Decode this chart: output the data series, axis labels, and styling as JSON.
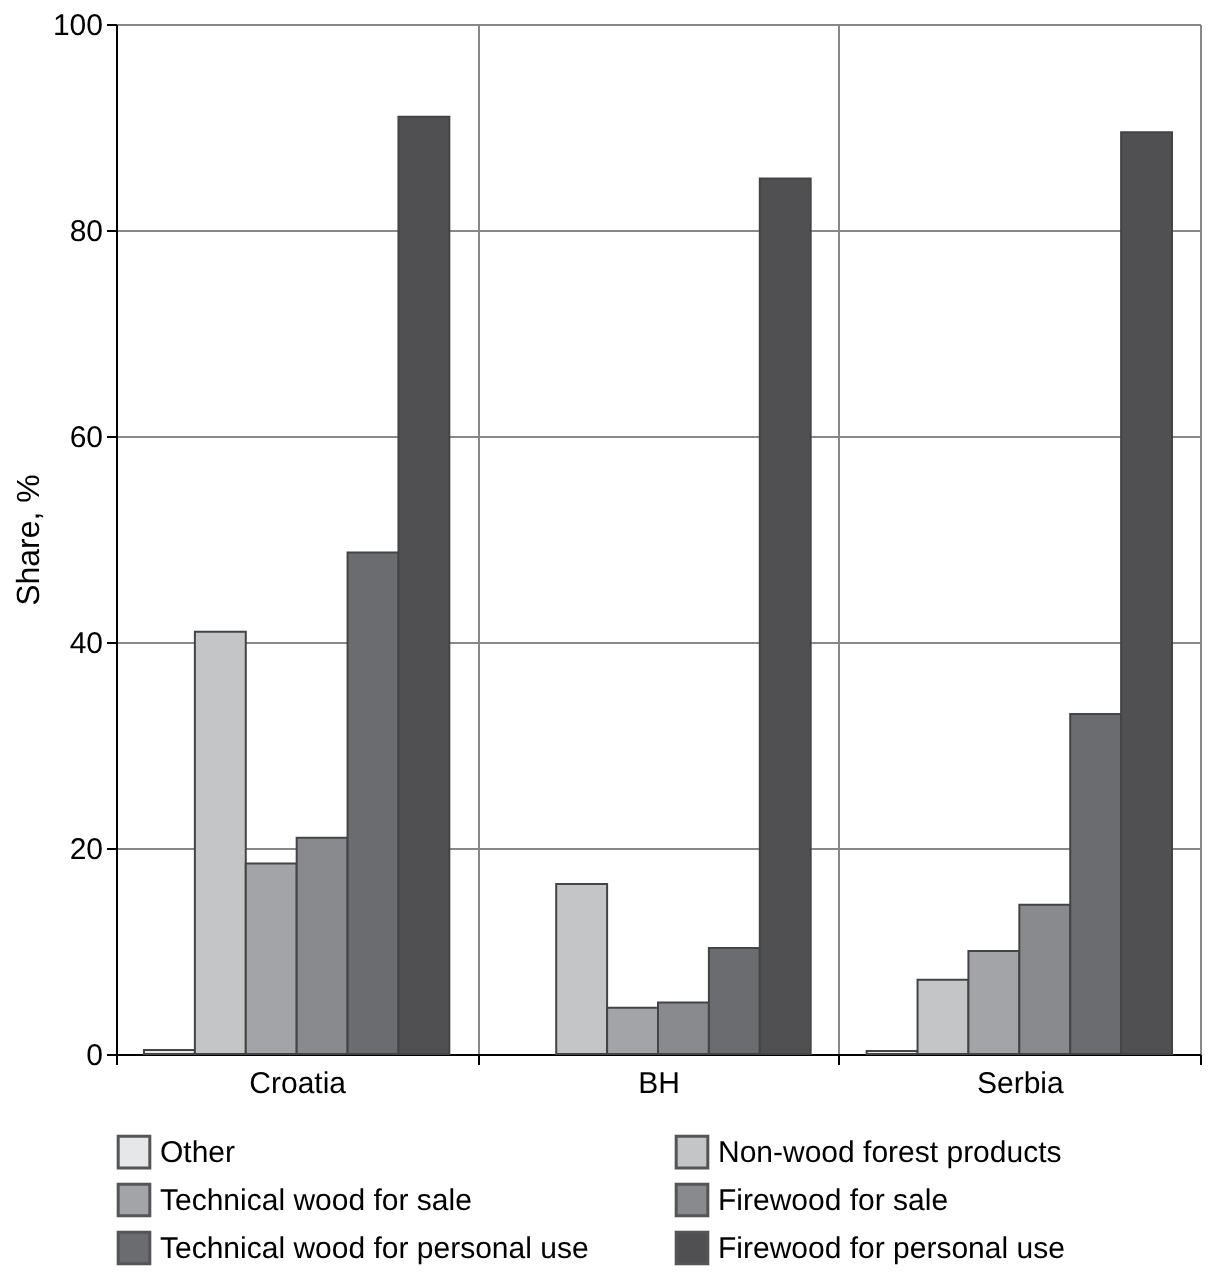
{
  "chart_data": {
    "type": "bar",
    "ylabel": "Share, %",
    "categories": [
      "Croatia",
      "BH",
      "Serbia"
    ],
    "series": [
      {
        "name": "Other",
        "color": "#e6e7e8",
        "values": [
          0.4,
          null,
          0.3
        ]
      },
      {
        "name": "Non-wood forest products",
        "color": "#c4c5c7",
        "values": [
          41,
          16.5,
          7.2
        ]
      },
      {
        "name": "Technical wood for sale",
        "color": "#a3a4a7",
        "values": [
          18.5,
          4.5,
          10
        ]
      },
      {
        "name": "Firewood for sale",
        "color": "#898a8d",
        "values": [
          21,
          5,
          14.5
        ]
      },
      {
        "name": "Technical wood for personal use",
        "color": "#6b6c70",
        "values": [
          48.7,
          10.3,
          33
        ]
      },
      {
        "name": "Firewood for personal use",
        "color": "#505053",
        "values": [
          91,
          85,
          89.5
        ]
      }
    ],
    "ylim": [
      0,
      100
    ],
    "yticks": [
      0,
      20,
      40,
      60,
      80,
      100
    ],
    "grid": true,
    "legend": "bottom"
  }
}
